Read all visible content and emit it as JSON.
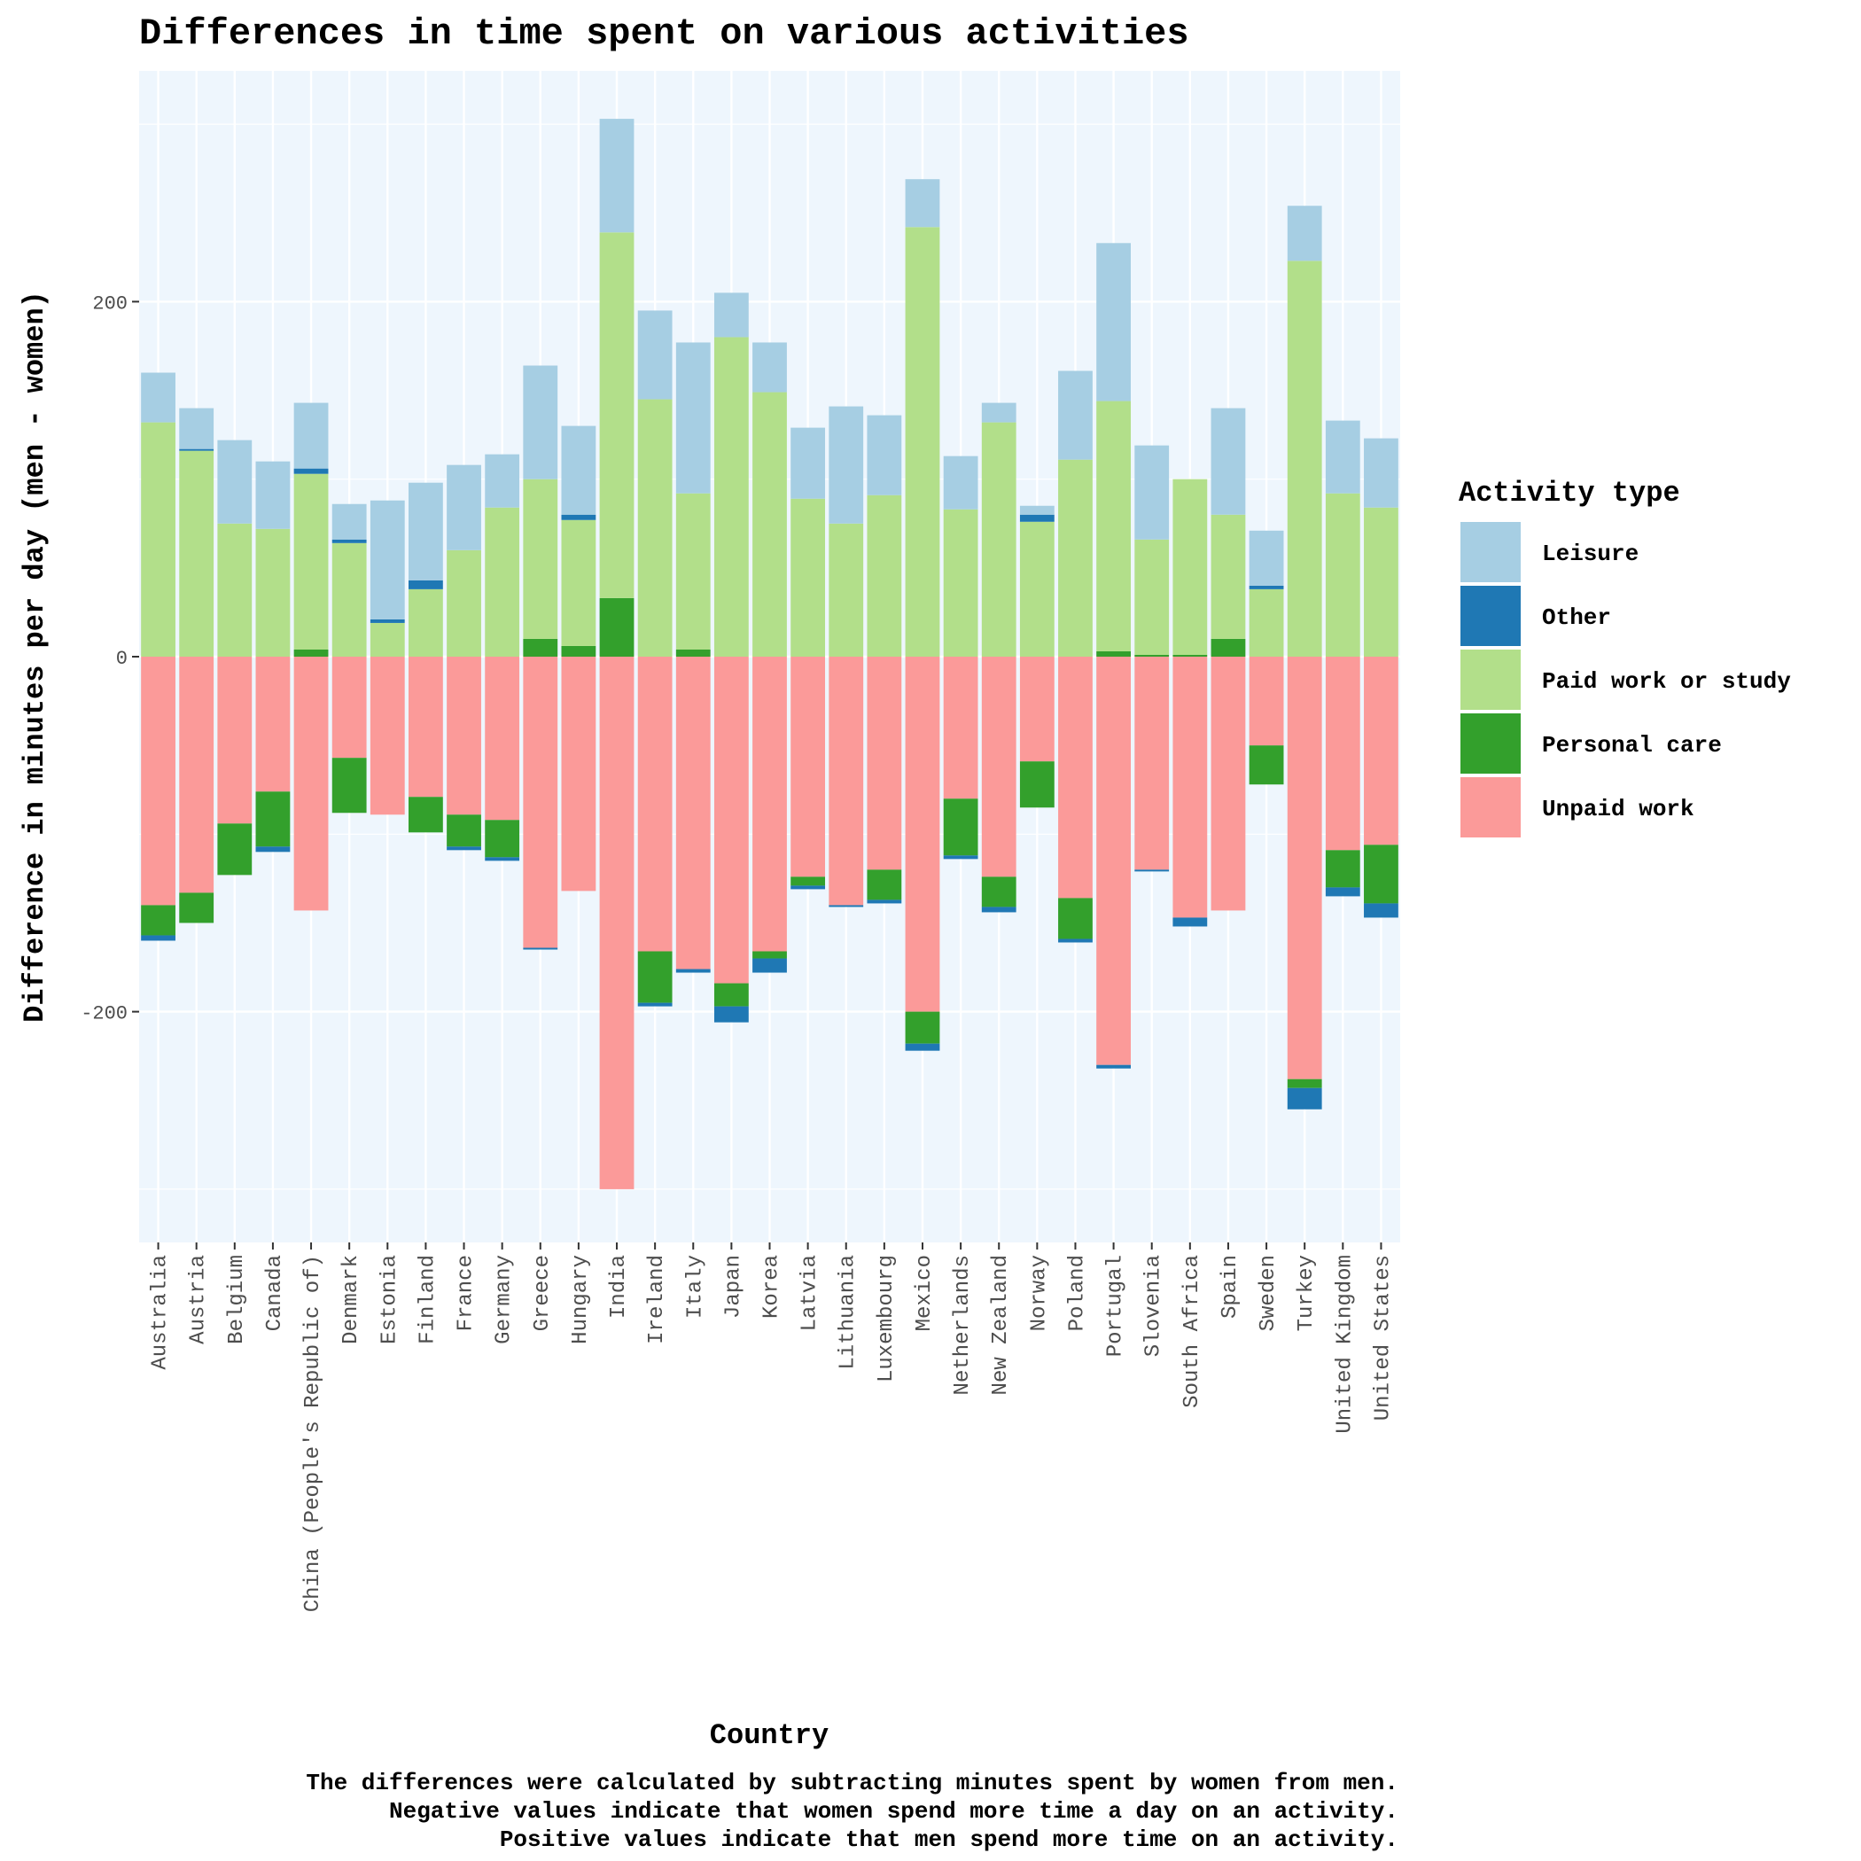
{
  "chart_data": {
    "type": "bar",
    "stacked": true,
    "title": "Differences in time spent on various activities",
    "xlabel": "Country",
    "ylabel": "Difference in minutes per day (men - women)",
    "ylim": [
      -330,
      330
    ],
    "yticks": [
      -200,
      0,
      200
    ],
    "ytick_labels": [
      "-200",
      "0",
      "200"
    ],
    "grid": true,
    "legend_title": "Activity type",
    "legend_position": "right",
    "caption": [
      "The differences were calculated by subtracting minutes spent by women from men.",
      "Negative values indicate that women spend more time a day on an activity.",
      "Positive values indicate that men spend more time on an activity."
    ],
    "categories": [
      "Australia",
      "Austria",
      "Belgium",
      "Canada",
      "China (People's Republic of)",
      "Denmark",
      "Estonia",
      "Finland",
      "France",
      "Germany",
      "Greece",
      "Hungary",
      "India",
      "Ireland",
      "Italy",
      "Japan",
      "Korea",
      "Latvia",
      "Lithuania",
      "Luxembourg",
      "Mexico",
      "Netherlands",
      "New Zealand",
      "Norway",
      "Poland",
      "Portugal",
      "Slovenia",
      "South Africa",
      "Spain",
      "Sweden",
      "Turkey",
      "United Kingdom",
      "United States"
    ],
    "stack_order_positive": [
      "Personal care",
      "Paid work or study",
      "Other",
      "Leisure"
    ],
    "stack_order_negative": [
      "Unpaid work",
      "Personal care",
      "Other"
    ],
    "series": [
      {
        "name": "Leisure",
        "color": "#a6cee3",
        "values": [
          28,
          23,
          47,
          38,
          37,
          20,
          67,
          55,
          48,
          30,
          64,
          50,
          64,
          50,
          85,
          25,
          28,
          40,
          66,
          45,
          27,
          30,
          11,
          5,
          50,
          89,
          53,
          0,
          60,
          31,
          31,
          41,
          39
        ]
      },
      {
        "name": "Other",
        "color": "#1f78b4",
        "values": [
          -3,
          1,
          0,
          -3,
          3,
          2,
          2,
          5,
          -2,
          -2,
          -1,
          3,
          0,
          -2,
          -2,
          -9,
          -8,
          -2,
          -1,
          -2,
          -4,
          -2,
          -3,
          4,
          -2,
          -2,
          -1,
          -5,
          0,
          2,
          -12,
          -5,
          -8
        ]
      },
      {
        "name": "Paid work or study",
        "color": "#b2df8a",
        "values": [
          132,
          116,
          75,
          72,
          99,
          64,
          19,
          38,
          60,
          84,
          90,
          71,
          206,
          145,
          88,
          180,
          149,
          89,
          75,
          91,
          242,
          83,
          132,
          76,
          111,
          141,
          65,
          99,
          70,
          38,
          223,
          92,
          84
        ]
      },
      {
        "name": "Personal care",
        "color": "#33a02c",
        "values": [
          -17,
          -17,
          -29,
          -31,
          4,
          -31,
          0,
          -20,
          -18,
          -21,
          10,
          6,
          33,
          -29,
          4,
          -13,
          -4,
          -5,
          0,
          -17,
          -18,
          -32,
          -17,
          -26,
          -23,
          3,
          1,
          1,
          10,
          -22,
          -5,
          -21,
          -33
        ]
      },
      {
        "name": "Unpaid work",
        "color": "#fb9a99",
        "values": [
          -140,
          -133,
          -94,
          -76,
          -143,
          -57,
          -89,
          -79,
          -89,
          -92,
          -164,
          -132,
          -300,
          -166,
          -176,
          -184,
          -166,
          -124,
          -140,
          -120,
          -200,
          -80,
          -124,
          -59,
          -136,
          -230,
          -120,
          -147,
          -143,
          -50,
          -238,
          -109,
          -106
        ]
      }
    ]
  }
}
